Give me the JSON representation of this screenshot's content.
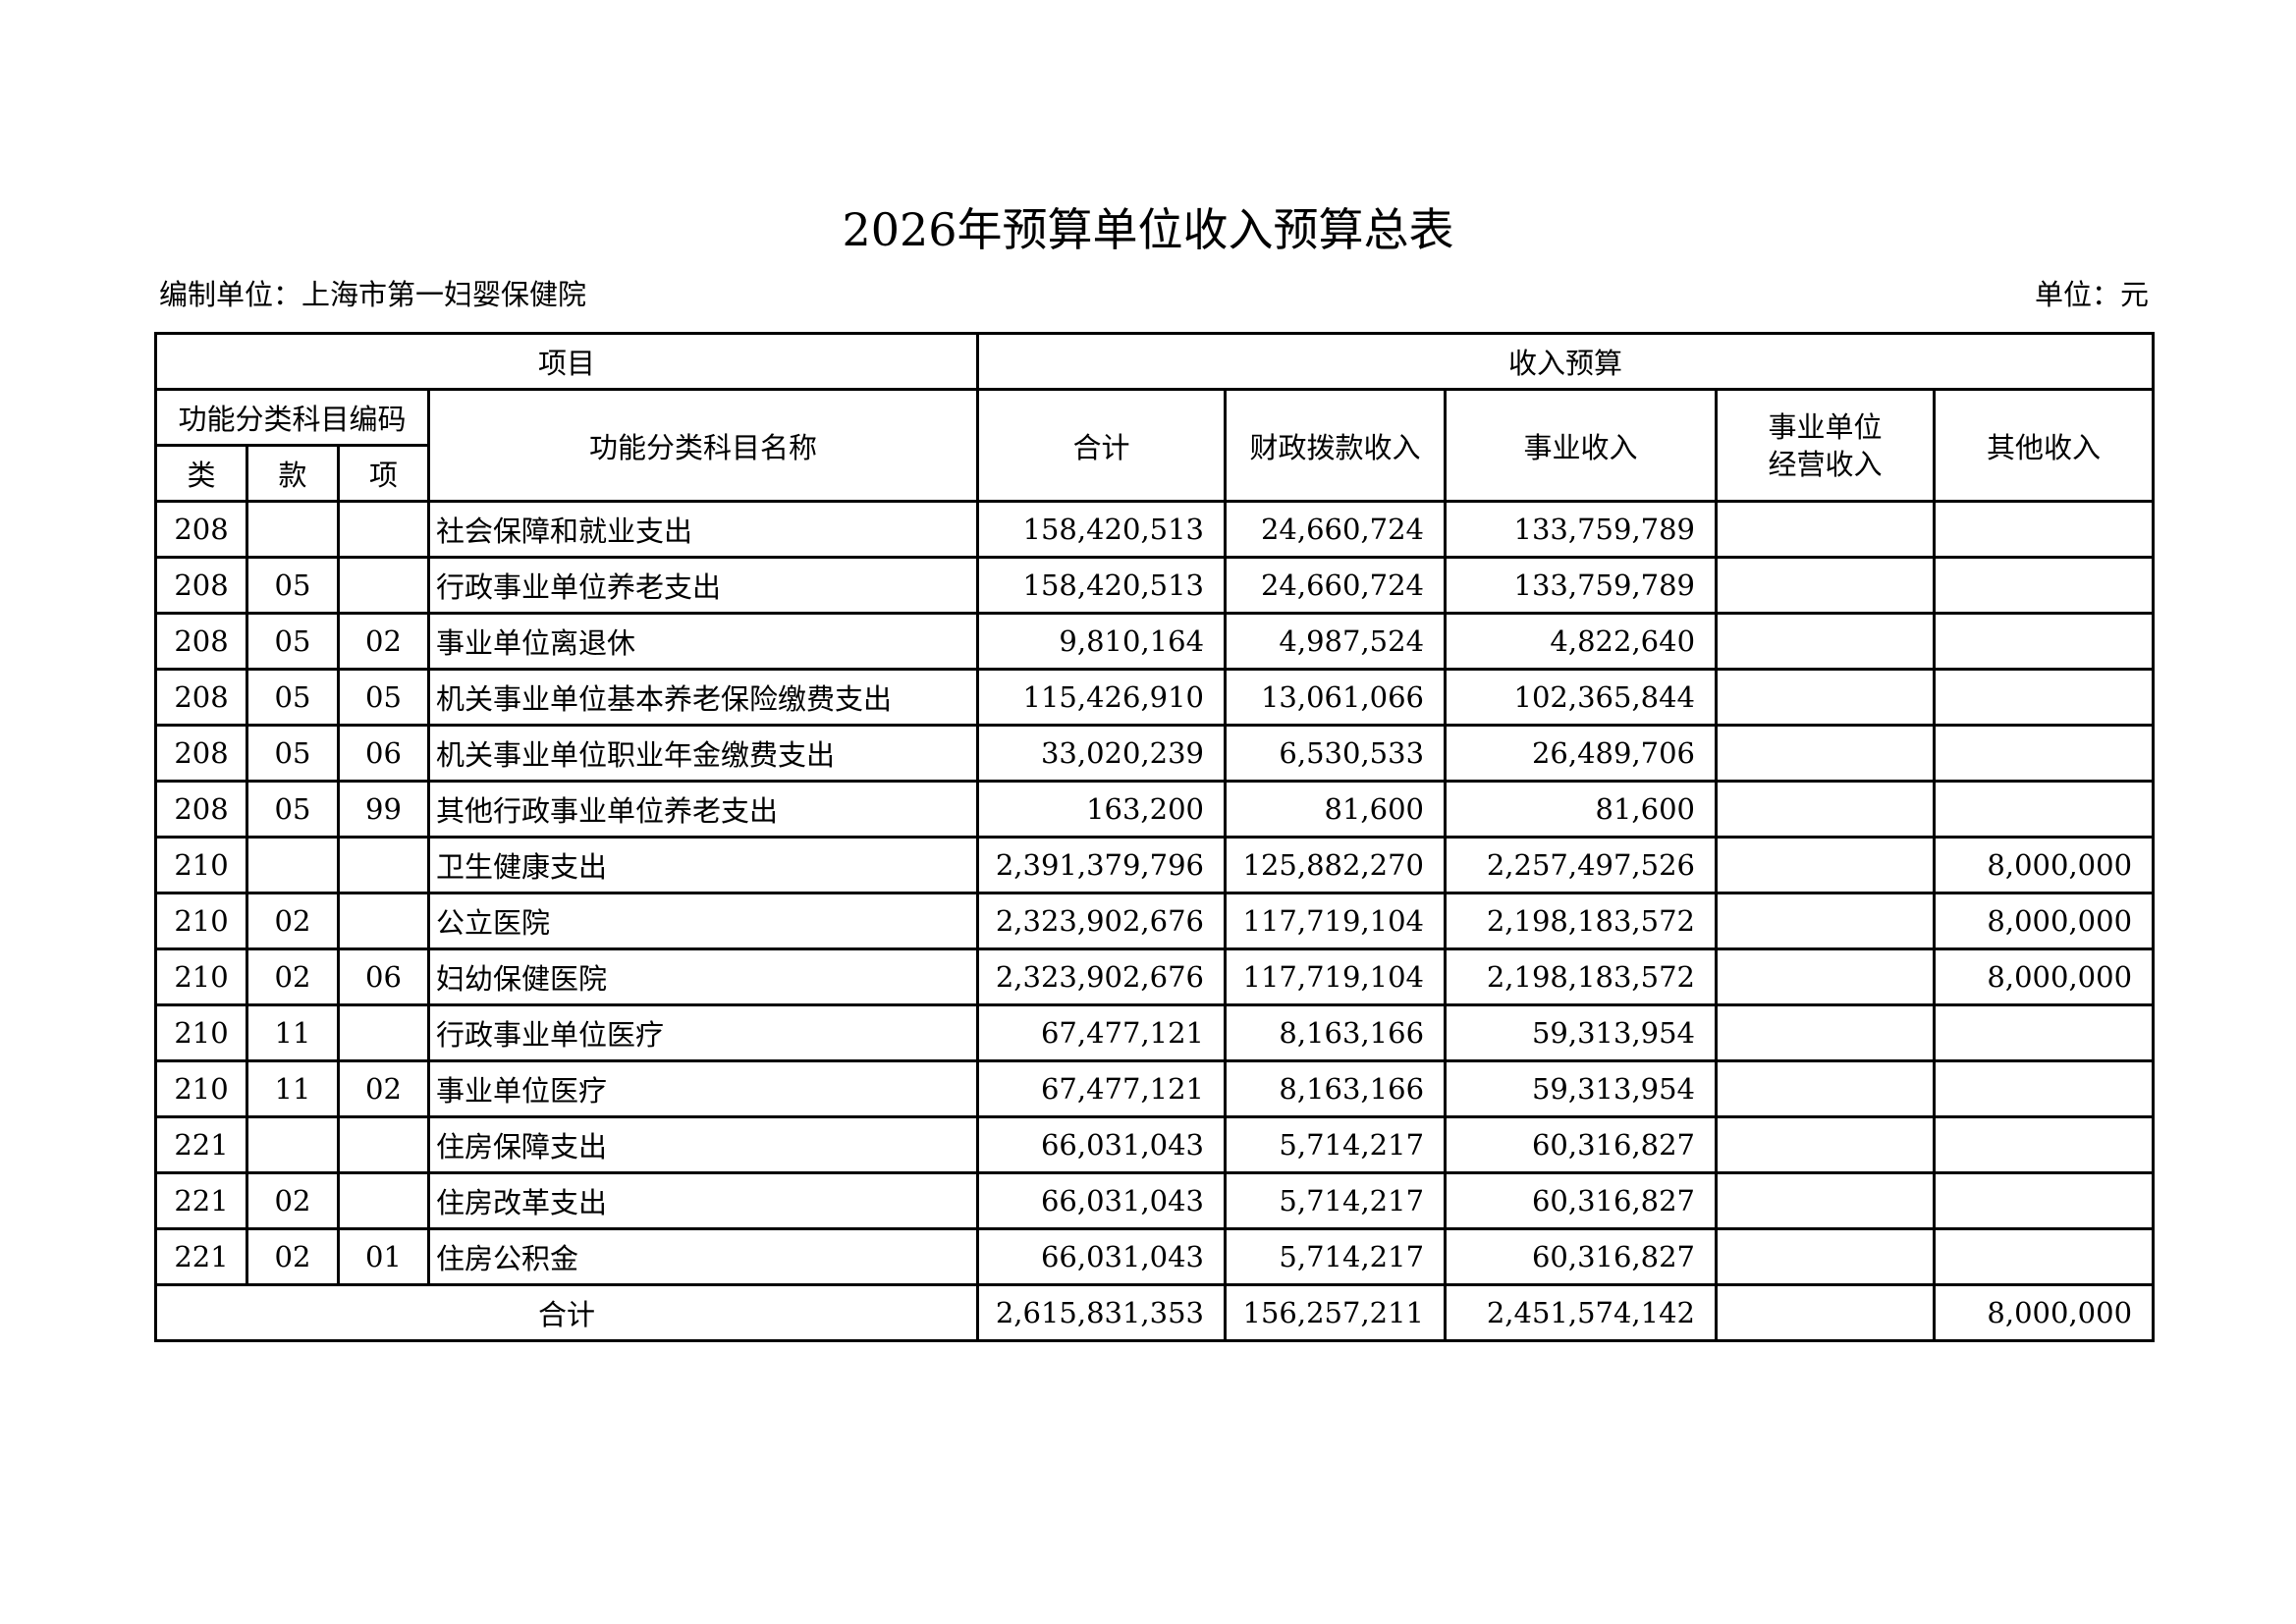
{
  "title": "2026年预算单位收入预算总表",
  "org_label": "编制单位：上海市第一妇婴保健院",
  "unit_label": "单位：元",
  "headers": {
    "project": "项目",
    "income_budget": "收入预算",
    "code_group": "功能分类科目编码",
    "lei": "类",
    "kuan": "款",
    "xiang": "项",
    "name": "功能分类科目名称",
    "total": "合计",
    "fiscal": "财政拨款收入",
    "business": "事业收入",
    "operating_1": "事业单位",
    "operating_2": "经营收入",
    "other": "其他收入"
  },
  "rows": [
    {
      "lei": "208",
      "kuan": "",
      "xiang": "",
      "name": "社会保障和就业支出",
      "total": "158,420,513",
      "fiscal": "24,660,724",
      "business": "133,759,789",
      "operating": "",
      "other": ""
    },
    {
      "lei": "208",
      "kuan": "05",
      "xiang": "",
      "name": "行政事业单位养老支出",
      "total": "158,420,513",
      "fiscal": "24,660,724",
      "business": "133,759,789",
      "operating": "",
      "other": ""
    },
    {
      "lei": "208",
      "kuan": "05",
      "xiang": "02",
      "name": "事业单位离退休",
      "total": "9,810,164",
      "fiscal": "4,987,524",
      "business": "4,822,640",
      "operating": "",
      "other": ""
    },
    {
      "lei": "208",
      "kuan": "05",
      "xiang": "05",
      "name": "机关事业单位基本养老保险缴费支出",
      "total": "115,426,910",
      "fiscal": "13,061,066",
      "business": "102,365,844",
      "operating": "",
      "other": ""
    },
    {
      "lei": "208",
      "kuan": "05",
      "xiang": "06",
      "name": "机关事业单位职业年金缴费支出",
      "total": "33,020,239",
      "fiscal": "6,530,533",
      "business": "26,489,706",
      "operating": "",
      "other": ""
    },
    {
      "lei": "208",
      "kuan": "05",
      "xiang": "99",
      "name": "其他行政事业单位养老支出",
      "total": "163,200",
      "fiscal": "81,600",
      "business": "81,600",
      "operating": "",
      "other": ""
    },
    {
      "lei": "210",
      "kuan": "",
      "xiang": "",
      "name": "卫生健康支出",
      "total": "2,391,379,796",
      "fiscal": "125,882,270",
      "business": "2,257,497,526",
      "operating": "",
      "other": "8,000,000"
    },
    {
      "lei": "210",
      "kuan": "02",
      "xiang": "",
      "name": "公立医院",
      "total": "2,323,902,676",
      "fiscal": "117,719,104",
      "business": "2,198,183,572",
      "operating": "",
      "other": "8,000,000"
    },
    {
      "lei": "210",
      "kuan": "02",
      "xiang": "06",
      "name": "妇幼保健医院",
      "total": "2,323,902,676",
      "fiscal": "117,719,104",
      "business": "2,198,183,572",
      "operating": "",
      "other": "8,000,000"
    },
    {
      "lei": "210",
      "kuan": "11",
      "xiang": "",
      "name": "行政事业单位医疗",
      "total": "67,477,121",
      "fiscal": "8,163,166",
      "business": "59,313,954",
      "operating": "",
      "other": ""
    },
    {
      "lei": "210",
      "kuan": "11",
      "xiang": "02",
      "name": "事业单位医疗",
      "total": "67,477,121",
      "fiscal": "8,163,166",
      "business": "59,313,954",
      "operating": "",
      "other": ""
    },
    {
      "lei": "221",
      "kuan": "",
      "xiang": "",
      "name": "住房保障支出",
      "total": "66,031,043",
      "fiscal": "5,714,217",
      "business": "60,316,827",
      "operating": "",
      "other": ""
    },
    {
      "lei": "221",
      "kuan": "02",
      "xiang": "",
      "name": "住房改革支出",
      "total": "66,031,043",
      "fiscal": "5,714,217",
      "business": "60,316,827",
      "operating": "",
      "other": ""
    },
    {
      "lei": "221",
      "kuan": "02",
      "xiang": "01",
      "name": "住房公积金",
      "total": "66,031,043",
      "fiscal": "5,714,217",
      "business": "60,316,827",
      "operating": "",
      "other": ""
    }
  ],
  "totals": {
    "label": "合计",
    "total": "2,615,831,353",
    "fiscal": "156,257,211",
    "business": "2,451,574,142",
    "operating": "",
    "other": "8,000,000"
  }
}
